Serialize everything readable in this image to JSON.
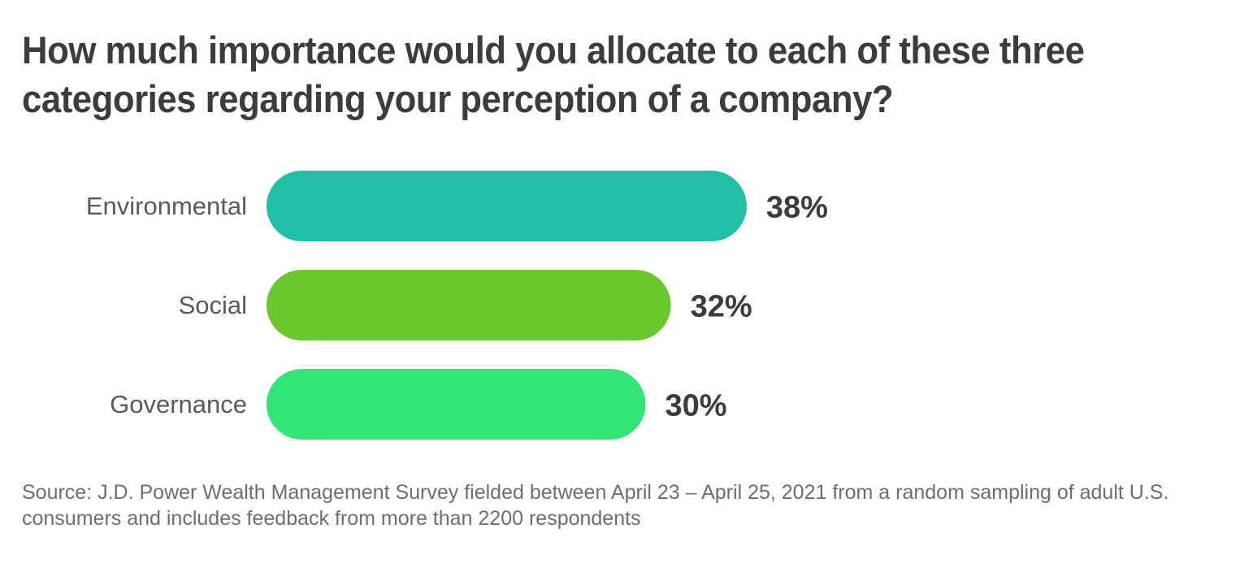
{
  "title": "How much importance would you allocate to each of these three categories regarding your perception of a company?",
  "source": "Source: J.D. Power Wealth Management Survey fielded between April 23 – April 25, 2021 from a random sampling of adult U.S. consumers and includes feedback from more than 2200 respondents",
  "chart_data": {
    "type": "bar",
    "orientation": "horizontal",
    "title": "How much importance would you allocate to each of these three categories regarding your perception of a company?",
    "categories": [
      "Environmental",
      "Social",
      "Governance"
    ],
    "values": [
      38,
      32,
      30
    ],
    "value_labels": [
      "38%",
      "32%",
      "30%"
    ],
    "unit": "%",
    "colors": [
      "#21bfa6",
      "#69c82d",
      "#33e577"
    ],
    "xlabel": "",
    "ylabel": "",
    "grid": false,
    "legend": "none"
  }
}
